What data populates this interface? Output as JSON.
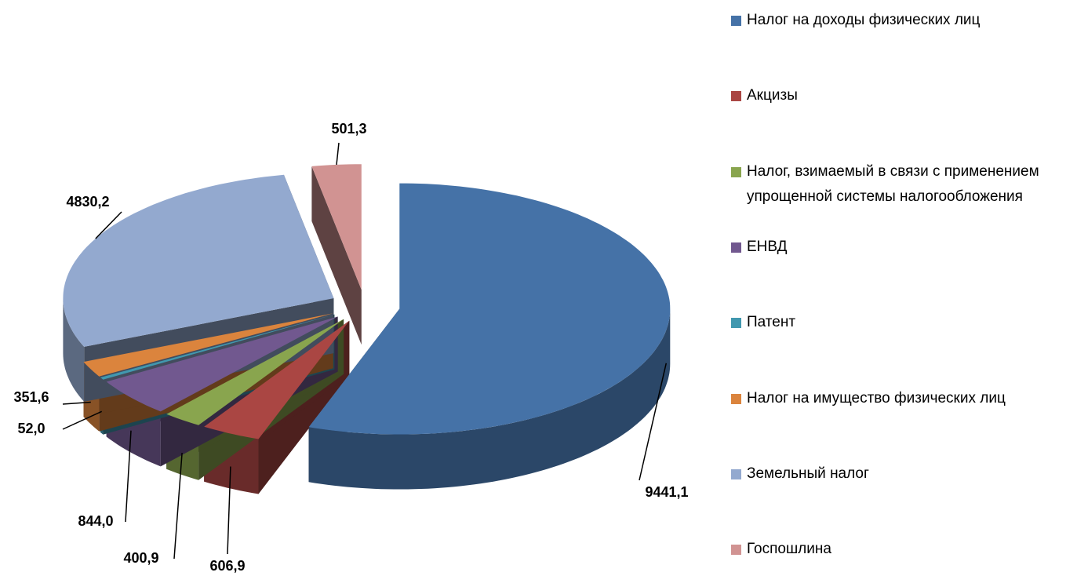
{
  "chart_data": {
    "type": "pie3d",
    "categories": [
      "Налог на доходы физических лиц",
      "Акцизы",
      "Налог, взимаемый в связи с применением упрощенной системы налогообложения",
      "ЕНВД",
      "Патент",
      "Налог на имущество физических лиц",
      "Земельный налог",
      "Госпошлина"
    ],
    "values": [
      9441.1,
      606.9,
      400.9,
      844.0,
      52.0,
      351.6,
      4830.2,
      501.3
    ],
    "value_labels": [
      "9441,1",
      "606,9",
      "400,9",
      "844,0",
      "52,0",
      "351,6",
      "4830,2",
      "501,3"
    ],
    "colors": [
      "#4572a7",
      "#aa4643",
      "#89a54e",
      "#71588f",
      "#4198af",
      "#db843d",
      "#93a9cf",
      "#d19392"
    ],
    "legend": "right"
  }
}
